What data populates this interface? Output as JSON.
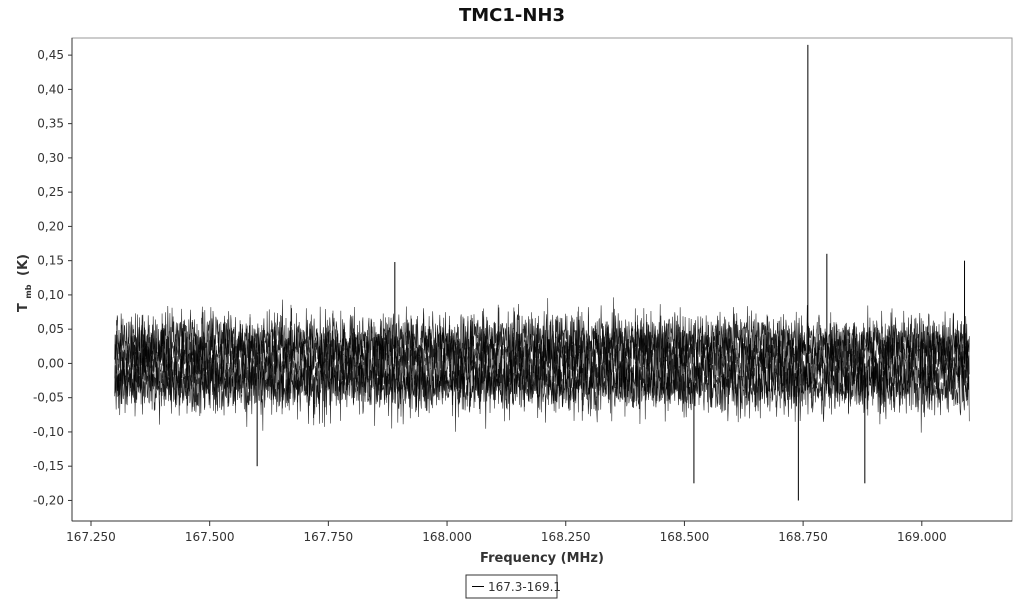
{
  "chart_data": {
    "type": "line",
    "title": "TMC1-NH3",
    "xlabel": "Frequency (MHz)",
    "ylabel_main": "T",
    "ylabel_sub": "mb",
    "ylabel_unit": "(K)",
    "xlim": [
      167.21,
      169.19
    ],
    "ylim": [
      -0.23,
      0.475
    ],
    "x_ticks": [
      167.25,
      167.5,
      167.75,
      168.0,
      168.25,
      168.5,
      168.75,
      169.0
    ],
    "x_tick_labels": [
      "167.250",
      "167.500",
      "167.750",
      "168.000",
      "168.250",
      "168.500",
      "168.750",
      "169.000"
    ],
    "y_ticks": [
      0.45,
      0.4,
      0.35,
      0.3,
      0.25,
      0.2,
      0.15,
      0.1,
      0.05,
      0.0,
      -0.05,
      -0.1,
      -0.15,
      -0.2
    ],
    "y_tick_labels": [
      "0,45",
      "0,40",
      "0,35",
      "0,30",
      "0,25",
      "0,20",
      "0,15",
      "0,10",
      "0,05",
      "0,00",
      "-0,05",
      "-0,10",
      "-0,15",
      "-0,20"
    ],
    "grid": false,
    "legend_position": "bottom-center",
    "series": [
      {
        "name": "167.3-169.1",
        "color": "#000000",
        "x_range": [
          167.3,
          169.1
        ],
        "noise_band": [
          -0.08,
          0.08
        ],
        "typical_extremes": [
          -0.12,
          0.12
        ],
        "notable_points": [
          {
            "x": 168.76,
            "y": 0.465
          },
          {
            "x": 168.74,
            "y": -0.2
          },
          {
            "x": 168.52,
            "y": -0.175
          },
          {
            "x": 168.88,
            "y": -0.175
          },
          {
            "x": 167.6,
            "y": -0.15
          },
          {
            "x": 167.89,
            "y": 0.148
          },
          {
            "x": 168.8,
            "y": 0.16
          },
          {
            "x": 169.09,
            "y": 0.15
          }
        ]
      }
    ]
  }
}
